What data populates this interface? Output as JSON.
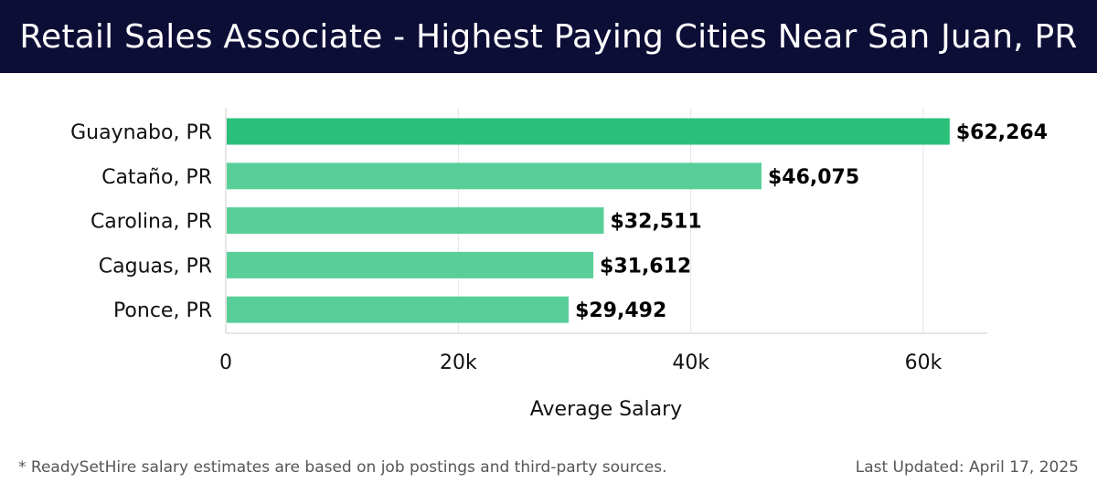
{
  "header": {
    "title": "Retail Sales Associate - Highest Paying Cities Near San Juan, PR"
  },
  "chart_data": {
    "type": "bar",
    "orientation": "horizontal",
    "categories": [
      "Guaynabo, PR",
      "Cataño, PR",
      "Carolina, PR",
      "Caguas, PR",
      "Ponce, PR"
    ],
    "values": [
      62264,
      46075,
      32511,
      31612,
      29492
    ],
    "value_labels": [
      "$62,264",
      "$46,075",
      "$32,511",
      "$31,612",
      "$29,492"
    ],
    "xlabel": "Average Salary",
    "ylabel": "",
    "xlim": [
      0,
      65500
    ],
    "xticks": [
      0,
      20000,
      40000,
      60000
    ],
    "xtick_labels": [
      "0",
      "20k",
      "40k",
      "60k"
    ],
    "grid": "vertical",
    "colors": {
      "bar_top": "#2ac07a",
      "bar": "#58cf98"
    }
  },
  "footer": {
    "note": "* ReadySetHire salary estimates are based on job postings and third-party sources.",
    "updated": "Last Updated: April 17, 2025"
  }
}
